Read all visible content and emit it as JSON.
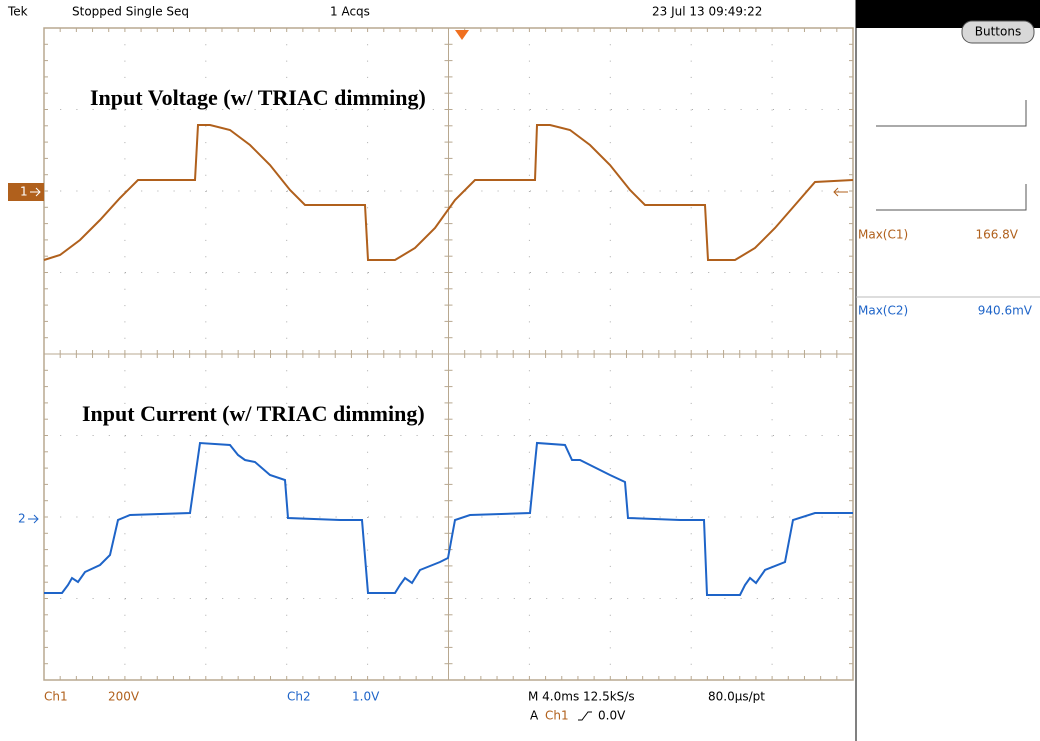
{
  "header": {
    "brand": "Tek",
    "status": "Stopped Single Seq",
    "acqs": "1 Acqs",
    "datetime": "23 Jul 13 09:49:22"
  },
  "annotations": [
    "Input Voltage (w/ TRIAC dimming)",
    "Input Current (w/ TRIAC dimming)"
  ],
  "markers": [
    "1",
    "2"
  ],
  "panel": {
    "button": "Buttons",
    "measurements": [
      {
        "label": "Max(C1)",
        "value": "166.8V"
      },
      {
        "label": "Max(C2)",
        "value": "940.6mV"
      }
    ]
  },
  "footer": {
    "ch1": "Ch1",
    "ch1_scale": "200V",
    "ch2": "Ch2",
    "ch2_scale": "1.0V",
    "timebase": "M 4.0ms 12.5kS/s",
    "resolution": "80.0µs/pt",
    "trigger_mode": "A",
    "trigger_source": "Ch1",
    "trigger_level": "0.0V"
  }
}
